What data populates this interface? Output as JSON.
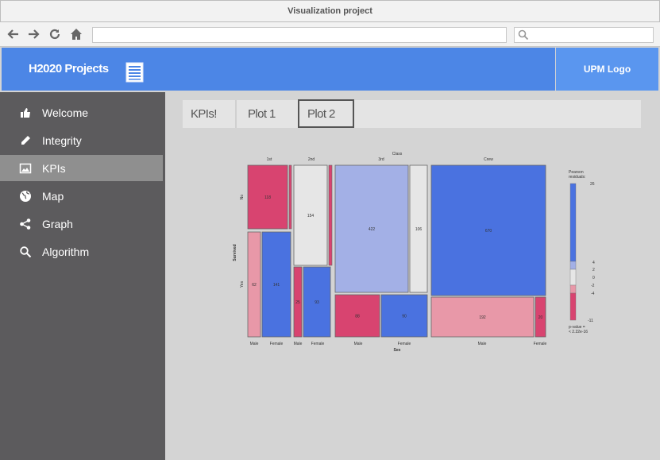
{
  "window": {
    "title": "Visualization project"
  },
  "nav": {
    "back_icon": "arrow-left-icon",
    "forward_icon": "arrow-right-icon",
    "reload_icon": "reload-icon",
    "home_icon": "home-icon",
    "url_value": "",
    "search_value": ""
  },
  "header": {
    "brand": "H2020 Projects",
    "logo": "UPM Logo",
    "color": "#4c86e6"
  },
  "sidebar": {
    "items": [
      {
        "label": "Welcome",
        "icon": "thumbs-up-icon"
      },
      {
        "label": "Integrity",
        "icon": "pencil-icon"
      },
      {
        "label": "KPIs",
        "icon": "image-icon",
        "active": true
      },
      {
        "label": "Map",
        "icon": "globe-icon"
      },
      {
        "label": "Graph",
        "icon": "share-icon"
      },
      {
        "label": "Algorithm",
        "icon": "search-icon"
      }
    ]
  },
  "tabs": [
    {
      "label": "KPIs!"
    },
    {
      "label": "Plot 1"
    },
    {
      "label": "Plot 2",
      "active": true
    }
  ],
  "chart_data": {
    "type": "mosaic",
    "title": "Class",
    "xlabel": "Sex",
    "ylabel": "Survived",
    "class_labels": [
      "1st",
      "2nd",
      "3rd",
      "Crew"
    ],
    "sex_labels": [
      "Male",
      "Female"
    ],
    "survived_labels": [
      "No",
      "Yes"
    ],
    "cells": [
      {
        "class": "1st",
        "sex": "Male",
        "survived": "No",
        "value": "118"
      },
      {
        "class": "1st",
        "sex": "Male",
        "survived": "Yes",
        "value": "62"
      },
      {
        "class": "1st",
        "sex": "Female",
        "survived": "Yes",
        "value": "141"
      },
      {
        "class": "2nd",
        "sex": "Male",
        "survived": "No",
        "value": "154"
      },
      {
        "class": "2nd",
        "sex": "Female",
        "survived": "Yes",
        "value": "93"
      },
      {
        "class": "2nd",
        "sex": "Male",
        "survived": "Yes",
        "value": "25"
      },
      {
        "class": "3rd",
        "sex": "Male",
        "survived": "No",
        "value": "422"
      },
      {
        "class": "3rd",
        "sex": "Female",
        "survived": "No",
        "value": "106"
      },
      {
        "class": "3rd",
        "sex": "Male",
        "survived": "Yes",
        "value": "88"
      },
      {
        "class": "3rd",
        "sex": "Female",
        "survived": "Yes",
        "value": "90"
      },
      {
        "class": "Crew",
        "sex": "Male",
        "survived": "No",
        "value": "670"
      },
      {
        "class": "Crew",
        "sex": "Male",
        "survived": "Yes",
        "value": "192"
      },
      {
        "class": "Crew",
        "sex": "Female",
        "survived": "Yes",
        "value": "20"
      }
    ],
    "legend": {
      "title_lines": [
        "Pearson",
        "residuals:"
      ],
      "max": "26",
      "ticks": [
        "4",
        "2",
        "0",
        "-2",
        "-4"
      ],
      "min": "-11",
      "pvalue_lines": [
        "p-value =",
        "< 2.22e-16"
      ],
      "colors": [
        "#4a72e0",
        "#a3b0e6",
        "#e6e6e6",
        "#e898a8",
        "#d84470"
      ]
    }
  }
}
